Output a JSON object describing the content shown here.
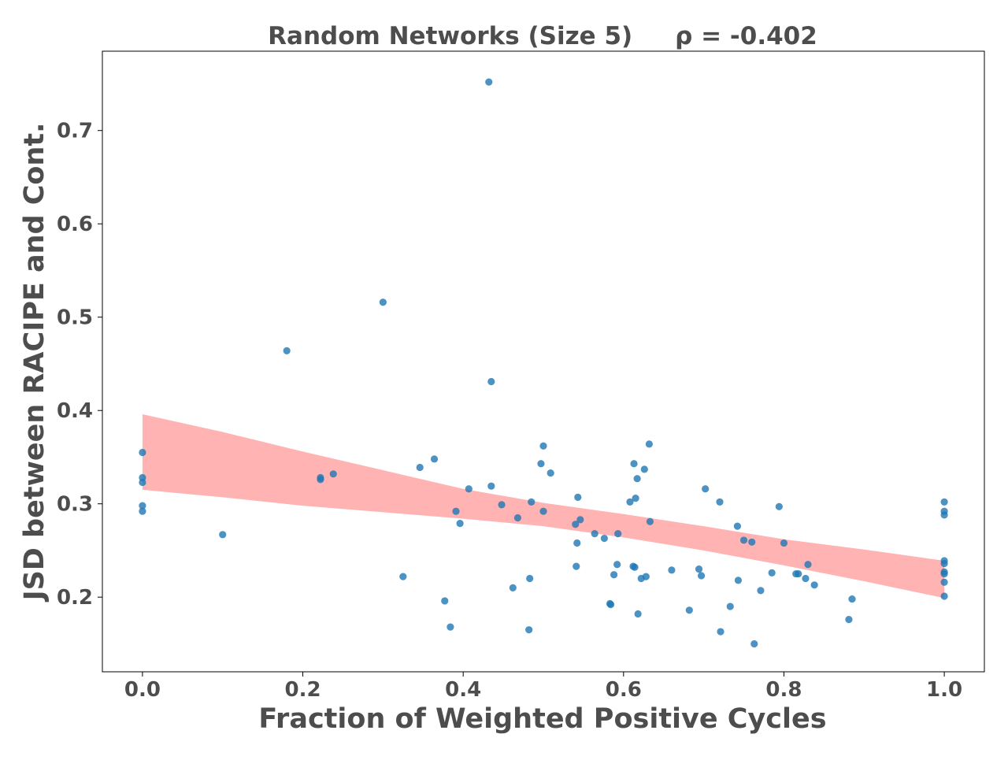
{
  "chart_data": {
    "type": "scatter",
    "title": "Random Networks (Size 5)     ρ = -0.402",
    "xlabel": "Fraction of Weighted Positive Cycles",
    "ylabel": "JSD between RACIPE and Cont.",
    "xlim": [
      -0.05,
      1.05
    ],
    "ylim": [
      0.12,
      0.785
    ],
    "xticks": [
      0.0,
      0.2,
      0.4,
      0.6,
      0.8,
      1.0
    ],
    "xtick_labels": [
      "0.0",
      "0.2",
      "0.4",
      "0.6",
      "0.8",
      "1.0"
    ],
    "yticks": [
      0.2,
      0.3,
      0.4,
      0.5,
      0.6,
      0.7
    ],
    "ytick_labels": [
      "0.2",
      "0.3",
      "0.4",
      "0.5",
      "0.6",
      "0.7"
    ],
    "grid": false,
    "colors": {
      "points": "#1f77b4",
      "band": "#ff9999",
      "text": "#4d4d4d",
      "frame": "#000000"
    },
    "confidence_band": {
      "x": [
        0.0,
        0.1,
        0.2,
        0.3,
        0.4,
        0.5,
        0.6,
        0.7,
        0.8,
        0.9,
        1.0
      ],
      "upper": [
        0.396,
        0.377,
        0.356,
        0.336,
        0.316,
        0.301,
        0.289,
        0.276,
        0.262,
        0.251,
        0.239
      ],
      "lower": [
        0.315,
        0.307,
        0.298,
        0.291,
        0.284,
        0.276,
        0.264,
        0.25,
        0.234,
        0.217,
        0.199
      ]
    },
    "series": [
      {
        "points": [
          [
            0.0,
            0.355
          ],
          [
            0.0,
            0.328
          ],
          [
            0.0,
            0.323
          ],
          [
            0.0,
            0.298
          ],
          [
            0.0,
            0.292
          ],
          [
            0.1,
            0.267
          ],
          [
            0.18,
            0.464
          ],
          [
            0.222,
            0.328
          ],
          [
            0.222,
            0.326
          ],
          [
            0.238,
            0.332
          ],
          [
            0.3,
            0.516
          ],
          [
            0.325,
            0.222
          ],
          [
            0.346,
            0.339
          ],
          [
            0.364,
            0.348
          ],
          [
            0.377,
            0.196
          ],
          [
            0.384,
            0.168
          ],
          [
            0.391,
            0.292
          ],
          [
            0.396,
            0.279
          ],
          [
            0.407,
            0.316
          ],
          [
            0.432,
            0.752
          ],
          [
            0.435,
            0.431
          ],
          [
            0.435,
            0.319
          ],
          [
            0.448,
            0.299
          ],
          [
            0.462,
            0.21
          ],
          [
            0.468,
            0.285
          ],
          [
            0.482,
            0.165
          ],
          [
            0.483,
            0.22
          ],
          [
            0.485,
            0.302
          ],
          [
            0.497,
            0.343
          ],
          [
            0.5,
            0.292
          ],
          [
            0.5,
            0.362
          ],
          [
            0.509,
            0.333
          ],
          [
            0.54,
            0.278
          ],
          [
            0.541,
            0.233
          ],
          [
            0.542,
            0.258
          ],
          [
            0.543,
            0.307
          ],
          [
            0.546,
            0.283
          ],
          [
            0.564,
            0.268
          ],
          [
            0.576,
            0.263
          ],
          [
            0.583,
            0.193
          ],
          [
            0.584,
            0.192
          ],
          [
            0.588,
            0.224
          ],
          [
            0.592,
            0.235
          ],
          [
            0.593,
            0.268
          ],
          [
            0.608,
            0.302
          ],
          [
            0.612,
            0.233
          ],
          [
            0.613,
            0.343
          ],
          [
            0.614,
            0.232
          ],
          [
            0.615,
            0.306
          ],
          [
            0.617,
            0.327
          ],
          [
            0.618,
            0.182
          ],
          [
            0.622,
            0.22
          ],
          [
            0.626,
            0.337
          ],
          [
            0.628,
            0.222
          ],
          [
            0.632,
            0.364
          ],
          [
            0.633,
            0.281
          ],
          [
            0.66,
            0.229
          ],
          [
            0.682,
            0.186
          ],
          [
            0.694,
            0.23
          ],
          [
            0.697,
            0.223
          ],
          [
            0.702,
            0.316
          ],
          [
            0.72,
            0.302
          ],
          [
            0.721,
            0.163
          ],
          [
            0.733,
            0.19
          ],
          [
            0.742,
            0.276
          ],
          [
            0.743,
            0.218
          ],
          [
            0.75,
            0.261
          ],
          [
            0.76,
            0.259
          ],
          [
            0.763,
            0.15
          ],
          [
            0.771,
            0.207
          ],
          [
            0.785,
            0.226
          ],
          [
            0.794,
            0.297
          ],
          [
            0.8,
            0.258
          ],
          [
            0.815,
            0.225
          ],
          [
            0.818,
            0.225
          ],
          [
            0.827,
            0.22
          ],
          [
            0.83,
            0.235
          ],
          [
            0.838,
            0.213
          ],
          [
            0.881,
            0.176
          ],
          [
            0.885,
            0.198
          ],
          [
            1.0,
            0.302
          ],
          [
            1.0,
            0.292
          ],
          [
            1.0,
            0.288
          ],
          [
            1.0,
            0.239
          ],
          [
            1.0,
            0.236
          ],
          [
            1.0,
            0.227
          ],
          [
            1.0,
            0.225
          ],
          [
            1.0,
            0.216
          ],
          [
            1.0,
            0.201
          ]
        ]
      }
    ]
  }
}
